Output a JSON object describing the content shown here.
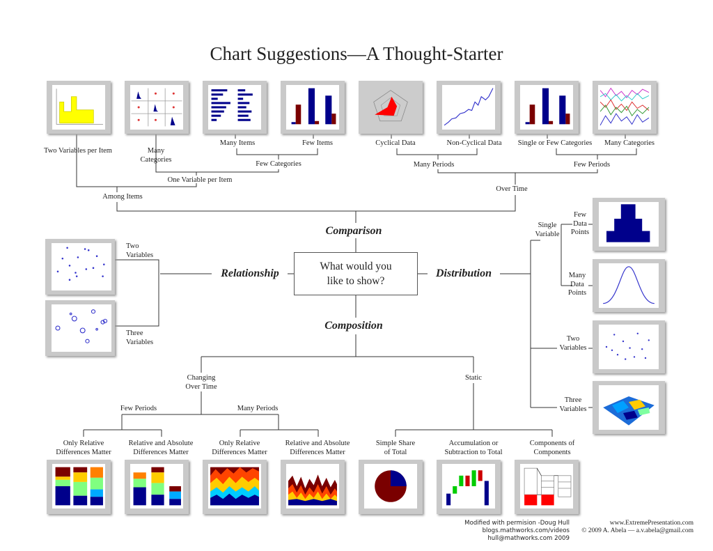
{
  "title": "Chart Suggestions—A Thought-Starter",
  "question": "What would you like to show?",
  "categories": {
    "comparison": "Comparison",
    "relationship": "Relationship",
    "distribution": "Distribution",
    "composition": "Composition"
  },
  "comparison": {
    "among_items": "Among Items",
    "two_variables_per_item": "Two Variables per Item",
    "one_variable_per_item": "One Variable per Item",
    "many_categories": "Many Categories",
    "few_categories": "Few Categories",
    "many_items": "Many Items",
    "few_items": "Few Items",
    "over_time": "Over Time",
    "many_periods": "Many Periods",
    "few_periods": "Few Periods",
    "cyclical": "Cyclical Data",
    "non_cyclical": "Non-Cyclical Data",
    "single_or_few": "Single or Few Categories",
    "many_categories_time": "Many Categories"
  },
  "relationship": {
    "two_variables": "Two Variables",
    "three_variables": "Three Variables"
  },
  "distribution": {
    "single_variable": "Single Variable",
    "few_points": "Few Data Points",
    "many_points": "Many Data Points",
    "two_variables": "Two Variables",
    "three_variables": "Three Variables"
  },
  "composition": {
    "changing": "Changing Over Time",
    "static": "Static",
    "few_periods": "Few Periods",
    "many_periods": "Many Periods",
    "only_relative_1": "Only Relative Differences Matter",
    "rel_abs_1": "Relative and Absolute Differences Matter",
    "only_relative_2": "Only Relative Differences Matter",
    "rel_abs_2": "Relative and Absolute Differences Matter",
    "simple_share": "Simple Share of Total",
    "accumulation": "Accumulation or Subtraction to Total",
    "components": "Components of Components"
  },
  "footer": {
    "left": [
      "Modified with permision -Doug Hull",
      "blogs.mathworks.com/videos",
      "hull@mathworks.com 2009"
    ],
    "right": [
      "www.ExtremePresentation.com",
      "© 2009  A. Abela — a.v.abela@gmail.com"
    ]
  },
  "colors": {
    "navy": "#00008b",
    "maroon": "#7a0000",
    "yellow": "#ffff00",
    "red": "#ff0000",
    "frame": "#c9c9c9"
  }
}
